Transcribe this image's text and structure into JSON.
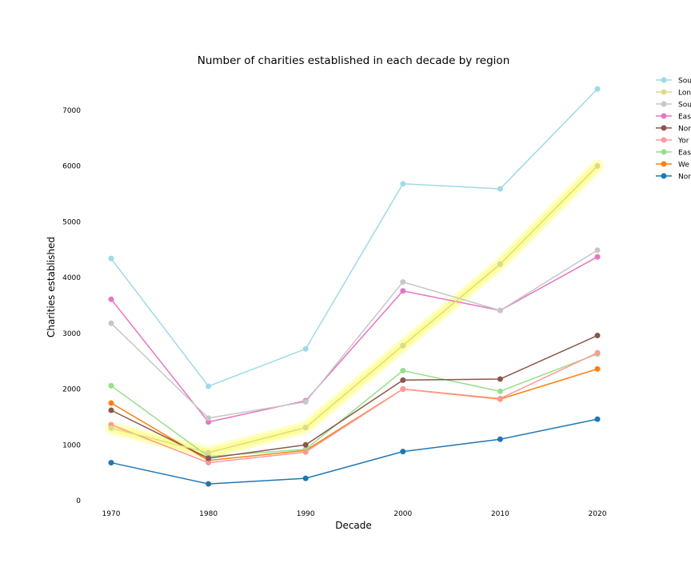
{
  "chart_data": {
    "type": "line",
    "title": "Number of charities established in each decade by region",
    "xlabel": "Decade",
    "ylabel": "Charities established",
    "x": [
      1970,
      1980,
      1990,
      2000,
      2010,
      2020
    ],
    "x_tick_labels": [
      "1970",
      "1980",
      "1990",
      "2000",
      "2010",
      "2020"
    ],
    "y_ticks": [
      0,
      1000,
      2000,
      3000,
      4000,
      5000,
      6000,
      7000
    ],
    "ylim": [
      0,
      7600
    ],
    "grid": false,
    "legend_position": "right",
    "highlight_series": "Lon",
    "highlight_color": "#ffff66",
    "series": [
      {
        "name": "Sou",
        "color": "#9edae5",
        "values": [
          4340,
          2050,
          2720,
          5680,
          5590,
          7380
        ]
      },
      {
        "name": "Lon",
        "color": "#dbdb8d",
        "values": [
          1300,
          860,
          1310,
          2780,
          4240,
          6000
        ]
      },
      {
        "name": "Sou",
        "color": "#c7c7c7",
        "values": [
          3180,
          1480,
          1770,
          3920,
          3410,
          4490
        ]
      },
      {
        "name": "Eas",
        "color": "#e377c2",
        "values": [
          3610,
          1410,
          1790,
          3760,
          3410,
          4370
        ]
      },
      {
        "name": "Nor",
        "color": "#8c564b",
        "values": [
          1620,
          760,
          1000,
          2160,
          2180,
          2960
        ]
      },
      {
        "name": "Yor",
        "color": "#ff9896",
        "values": [
          1360,
          680,
          870,
          2000,
          1830,
          2650
        ]
      },
      {
        "name": "Eas",
        "color": "#98df8a",
        "values": [
          2060,
          790,
          920,
          2330,
          1960,
          2630
        ]
      },
      {
        "name": "We",
        "color": "#ff7f0e",
        "values": [
          1750,
          720,
          900,
          2000,
          1820,
          2360
        ]
      },
      {
        "name": "Nor",
        "color": "#1f77b4",
        "values": [
          680,
          300,
          400,
          880,
          1100,
          1460
        ]
      }
    ]
  }
}
